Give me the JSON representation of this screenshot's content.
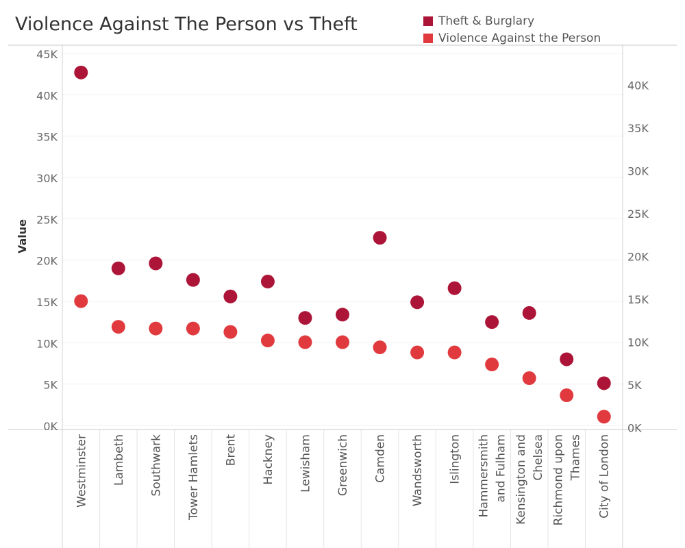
{
  "chart_data": {
    "type": "scatter",
    "title": "Violence Against The Person vs Theft",
    "ylabel": "Value",
    "categories": [
      "Westminster",
      "Lambeth",
      "Southwark",
      "Tower Hamlets",
      "Brent",
      "Hackney",
      "Lewisham",
      "Greenwich",
      "Camden",
      "Wandsworth",
      "Islington",
      "Hammersmith and Fulham",
      "Kensington and Chelsea",
      "Richmond upon Thames",
      "City of London"
    ],
    "category_lines": [
      [
        "Westminster"
      ],
      [
        "Lambeth"
      ],
      [
        "Southwark"
      ],
      [
        "Tower Hamlets"
      ],
      [
        "Brent"
      ],
      [
        "Hackney"
      ],
      [
        "Lewisham"
      ],
      [
        "Greenwich"
      ],
      [
        "Camden"
      ],
      [
        "Wandsworth"
      ],
      [
        "Islington"
      ],
      [
        "Hammersmith",
        "and Fulham"
      ],
      [
        "Kensington and",
        "Chelsea"
      ],
      [
        "Richmond upon",
        "Thames"
      ],
      [
        "City of London"
      ]
    ],
    "series": [
      {
        "name": "Theft & Burglary",
        "color": "#ad1538",
        "axis": "left",
        "values": [
          42700,
          19000,
          19600,
          17600,
          15600,
          17400,
          13000,
          13400,
          22700,
          14900,
          16600,
          12500,
          13600,
          8000,
          5100
        ]
      },
      {
        "name": "Violence Against the Person",
        "color": "#e03a3e",
        "axis": "right",
        "values": [
          14800,
          11800,
          11600,
          11600,
          11200,
          10200,
          10000,
          10000,
          9400,
          8800,
          8800,
          7400,
          5800,
          3800,
          1300
        ]
      }
    ],
    "left_axis": {
      "ylim": [
        -500,
        46000
      ],
      "ticks": [
        0,
        5000,
        10000,
        15000,
        20000,
        25000,
        30000,
        35000,
        40000,
        45000
      ],
      "tick_labels": [
        "0K",
        "5K",
        "10K",
        "15K",
        "20K",
        "25K",
        "30K",
        "35K",
        "40K",
        "45K"
      ]
    },
    "right_axis": {
      "ylim": [
        -200,
        44700
      ],
      "ticks": [
        0,
        5000,
        10000,
        15000,
        20000,
        25000,
        30000,
        35000,
        40000
      ],
      "tick_labels": [
        "0K",
        "5K",
        "10K",
        "15K",
        "20K",
        "25K",
        "30K",
        "35K",
        "40K"
      ]
    },
    "grid": true,
    "legend": "top-right"
  }
}
